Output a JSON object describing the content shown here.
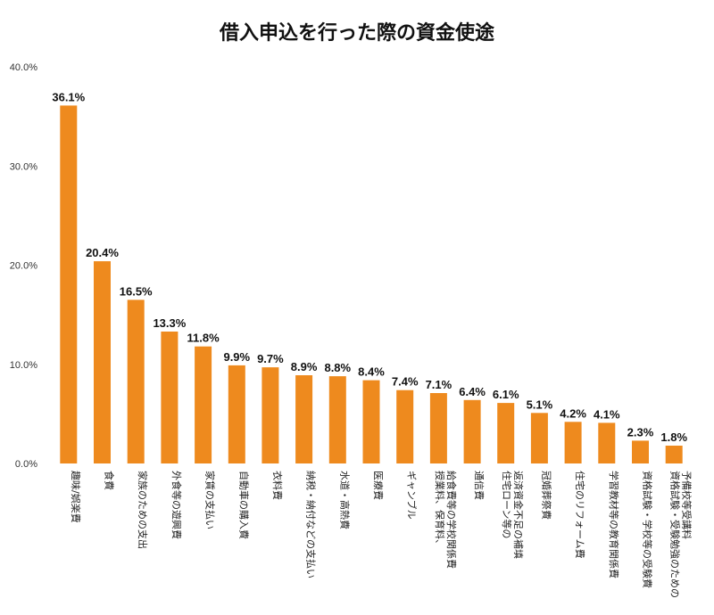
{
  "chart_data": {
    "type": "bar",
    "title": "借入申込を行った際の資金使途",
    "xlabel": "",
    "ylabel": "",
    "ylim": [
      0,
      40
    ],
    "yticks": [
      "0.0%",
      "10.0%",
      "20.0%",
      "30.0%",
      "40.0%"
    ],
    "color": "#ee8a1e",
    "categories": [
      [
        "趣味/娯楽費"
      ],
      [
        "食費"
      ],
      [
        "家族のための支出"
      ],
      [
        "外食等の遊興費"
      ],
      [
        "家賃の支払い"
      ],
      [
        "自動車の購入費"
      ],
      [
        "衣料費"
      ],
      [
        "納税・納付などの支払い"
      ],
      [
        "水道・高熱費"
      ],
      [
        "医療費"
      ],
      [
        "ギャンブル"
      ],
      [
        "授業料、保育料、",
        "給食費等の学校関係費"
      ],
      [
        "通信費"
      ],
      [
        "住宅ローン等の",
        "返済資金不足の補填"
      ],
      [
        "冠婚葬祭費"
      ],
      [
        "住宅のリフォーム費"
      ],
      [
        "学習教材等の教育関係費"
      ],
      [
        "資格試験・学校等の受験費"
      ],
      [
        "資格試験・受験勉強のための",
        "予備校等受講料"
      ]
    ],
    "values": [
      36.1,
      20.4,
      16.5,
      13.3,
      11.8,
      9.9,
      9.7,
      8.9,
      8.8,
      8.4,
      7.4,
      7.1,
      6.4,
      6.1,
      5.1,
      4.2,
      4.1,
      2.3,
      1.8
    ],
    "labels": [
      "36.1%",
      "20.4%",
      "16.5%",
      "13.3%",
      "11.8%",
      "9.9%",
      "9.7%",
      "8.9%",
      "8.8%",
      "8.4%",
      "7.4%",
      "7.1%",
      "6.4%",
      "6.1%",
      "5.1%",
      "4.2%",
      "4.1%",
      "2.3%",
      "1.8%"
    ]
  }
}
